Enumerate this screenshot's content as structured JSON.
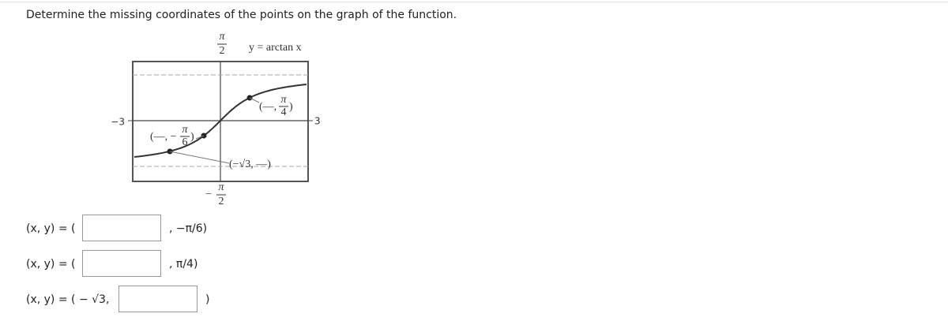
{
  "question": "Determine the missing coordinates of the points on the graph of the function.",
  "graph": {
    "function_label": "y = arctan x",
    "y_max_label": {
      "numerator": "π",
      "denominator": "2"
    },
    "y_min_label": {
      "sign": "−",
      "numerator": "π",
      "denominator": "2"
    },
    "x_min_label": "−3",
    "x_max_label": "3",
    "point_labels": [
      {
        "open": "(—,",
        "numerator": "π",
        "denominator": "4",
        "close": ")"
      },
      {
        "open": "(—, −",
        "numerator": "π",
        "denominator": "6",
        "close": ")"
      },
      {
        "text": "(−√3, —)"
      }
    ]
  },
  "answers": [
    {
      "prefix": "(x, y) = (",
      "suffix": ", −π/6)"
    },
    {
      "prefix": "(x, y) = (",
      "suffix": ", π/4)"
    },
    {
      "prefix": "(x, y) = ( − √3,",
      "suffix": ")"
    }
  ]
}
